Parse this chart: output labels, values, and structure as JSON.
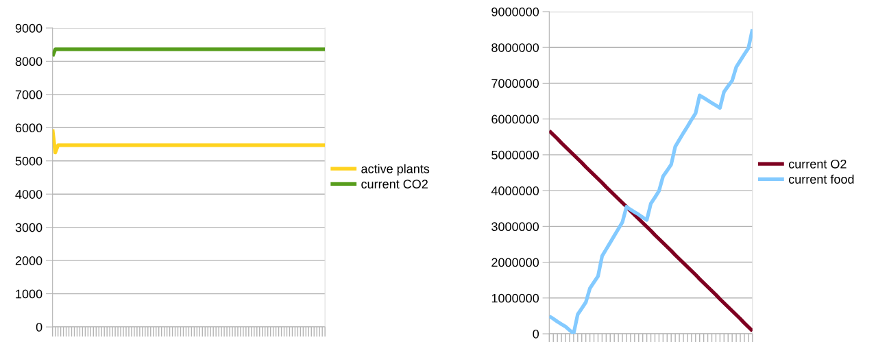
{
  "chart_data": [
    {
      "type": "line",
      "ylim": [
        0,
        9000
      ],
      "yticks": [
        0,
        1000,
        2000,
        3000,
        4000,
        5000,
        6000,
        7000,
        8000,
        9000
      ],
      "categories": [
        null,
        null,
        null,
        null,
        null,
        null,
        null,
        null,
        null,
        null,
        null,
        null,
        null,
        null,
        null,
        null,
        null,
        null,
        null,
        null,
        null,
        null,
        null,
        null,
        null,
        null,
        null,
        null,
        null,
        null,
        null,
        null,
        null,
        null,
        null,
        null,
        null,
        null,
        null,
        null,
        null,
        null,
        null,
        null,
        null,
        null,
        null,
        null,
        null,
        null,
        null,
        null,
        null,
        null,
        null,
        null,
        null,
        null,
        null,
        null,
        null,
        null,
        null,
        null,
        null,
        null,
        null,
        null,
        null,
        null,
        null,
        null,
        null,
        null,
        null,
        null,
        null,
        null,
        null,
        null,
        null,
        null,
        null,
        null,
        null,
        null,
        null,
        null,
        null,
        null,
        null,
        null,
        null,
        null,
        null,
        null,
        null,
        null,
        null,
        null,
        null
      ],
      "tick_labels": "y",
      "grid": "y",
      "legend": "right",
      "line_style": "solid",
      "series": [
        {
          "name": "active plants",
          "color": "#ffd320",
          "values": [
            5950,
            5250,
            5470,
            5470,
            5470,
            5470,
            5470,
            5470,
            5470,
            5470,
            5470,
            5470,
            5470,
            5470,
            5470,
            5470,
            5470,
            5470,
            5470,
            5470,
            5470,
            5470,
            5470,
            5470,
            5470,
            5470,
            5470,
            5470,
            5470,
            5470,
            5470,
            5470,
            5470,
            5470,
            5470,
            5470,
            5470,
            5470,
            5470,
            5470,
            5470,
            5470,
            5470,
            5470,
            5470,
            5470,
            5470,
            5470,
            5470,
            5470,
            5470,
            5470,
            5470,
            5470,
            5470,
            5470,
            5470,
            5470,
            5470,
            5470,
            5470,
            5470,
            5470,
            5470,
            5470,
            5470,
            5470,
            5470,
            5470,
            5470,
            5470,
            5470,
            5470,
            5470,
            5470,
            5470,
            5470,
            5470,
            5470,
            5470,
            5470,
            5470,
            5470,
            5470,
            5470,
            5470,
            5470,
            5470,
            5470,
            5470,
            5470,
            5470,
            5470,
            5470,
            5470,
            5470,
            5470,
            5470,
            5470,
            5470,
            5470
          ]
        },
        {
          "name": "current CO2",
          "color": "#579d1c",
          "values": [
            8150,
            8360,
            8360,
            8360,
            8360,
            8360,
            8360,
            8360,
            8360,
            8360,
            8360,
            8360,
            8360,
            8360,
            8360,
            8360,
            8360,
            8360,
            8360,
            8360,
            8360,
            8360,
            8360,
            8360,
            8360,
            8360,
            8360,
            8360,
            8360,
            8360,
            8360,
            8360,
            8360,
            8360,
            8360,
            8360,
            8360,
            8360,
            8360,
            8360,
            8360,
            8360,
            8360,
            8360,
            8360,
            8360,
            8360,
            8360,
            8360,
            8360,
            8360,
            8360,
            8360,
            8360,
            8360,
            8360,
            8360,
            8360,
            8360,
            8360,
            8360,
            8360,
            8360,
            8360,
            8360,
            8360,
            8360,
            8360,
            8360,
            8360,
            8360,
            8360,
            8360,
            8360,
            8360,
            8360,
            8360,
            8360,
            8360,
            8360,
            8360,
            8360,
            8360,
            8360,
            8360,
            8360,
            8360,
            8360,
            8360,
            8360,
            8360,
            8360,
            8360,
            8360,
            8360,
            8360,
            8360,
            8360,
            8360,
            8360,
            8360
          ]
        }
      ]
    },
    {
      "type": "line",
      "ylim": [
        0,
        9000000
      ],
      "yticks": [
        0,
        1000000,
        2000000,
        3000000,
        4000000,
        5000000,
        6000000,
        7000000,
        8000000,
        9000000
      ],
      "categories": [
        null,
        null,
        null,
        null,
        null,
        null,
        null,
        null,
        null,
        null,
        null,
        null,
        null,
        null,
        null,
        null,
        null,
        null,
        null,
        null,
        null,
        null,
        null,
        null,
        null,
        null,
        null,
        null,
        null,
        null,
        null,
        null,
        null,
        null,
        null,
        null,
        null,
        null,
        null,
        null,
        null,
        null,
        null,
        null,
        null,
        null,
        null,
        null,
        null,
        null,
        null
      ],
      "tick_labels": "y",
      "grid": "y",
      "legend": "right",
      "line_style": "solid",
      "series": [
        {
          "name": "current O2",
          "color": "#7e0021",
          "values": [
            5670000,
            5560000,
            5450000,
            5330000,
            5220000,
            5110000,
            5000000,
            4890000,
            4780000,
            4660000,
            4550000,
            4440000,
            4330000,
            4220000,
            4100000,
            3990000,
            3880000,
            3770000,
            3660000,
            3550000,
            3430000,
            3320000,
            3210000,
            3100000,
            2990000,
            2880000,
            2760000,
            2650000,
            2540000,
            2430000,
            2320000,
            2200000,
            2090000,
            1980000,
            1870000,
            1760000,
            1650000,
            1530000,
            1420000,
            1310000,
            1200000,
            1090000,
            970000,
            860000,
            750000,
            640000,
            530000,
            420000,
            300000,
            190000,
            80000
          ]
        },
        {
          "name": "current food",
          "color": "#83caff",
          "values": [
            490000,
            420000,
            340000,
            270000,
            200000,
            100000,
            10000,
            540000,
            710000,
            880000,
            1270000,
            1440000,
            1610000,
            2170000,
            2360000,
            2550000,
            2740000,
            2930000,
            3120000,
            3550000,
            3470000,
            3400000,
            3330000,
            3250000,
            3180000,
            3640000,
            3810000,
            3990000,
            4400000,
            4560000,
            4730000,
            5230000,
            5420000,
            5610000,
            5790000,
            5980000,
            6160000,
            6660000,
            6590000,
            6520000,
            6450000,
            6380000,
            6310000,
            6760000,
            6920000,
            7070000,
            7450000,
            7630000,
            7810000,
            7980000,
            8510000
          ]
        }
      ]
    }
  ]
}
